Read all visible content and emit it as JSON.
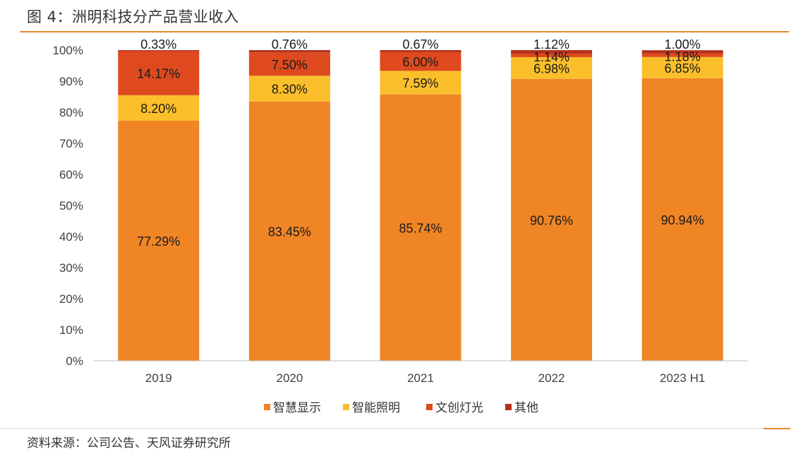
{
  "figure": {
    "title": "图 4：洲明科技分产品营业收入",
    "source": "资料来源：公司公告、天风证券研究所"
  },
  "chart_data": {
    "type": "bar",
    "stacked": true,
    "percent": true,
    "categories": [
      "2019",
      "2020",
      "2021",
      "2022",
      "2023 H1"
    ],
    "series": [
      {
        "name": "智慧显示",
        "color": "#F08526",
        "values": [
          77.29,
          83.45,
          85.74,
          90.76,
          90.94
        ],
        "labels": [
          "77.29%",
          "83.45%",
          "85.74%",
          "90.76%",
          "90.94%"
        ]
      },
      {
        "name": "智能照明",
        "color": "#FBBF2B",
        "values": [
          8.2,
          8.3,
          7.59,
          6.98,
          6.85
        ],
        "labels": [
          "8.20%",
          "8.30%",
          "7.59%",
          "6.98%",
          "6.85%"
        ]
      },
      {
        "name": "文创灯光",
        "color": "#DE4A1E",
        "values": [
          14.17,
          7.5,
          6.0,
          1.14,
          1.18
        ],
        "labels": [
          "14.17%",
          "7.50%",
          "6.00%",
          "1.14%",
          "1.18%"
        ]
      },
      {
        "name": "其他",
        "color": "#B5301C",
        "values": [
          0.33,
          0.76,
          0.67,
          1.12,
          1.0
        ],
        "labels": [
          "0.33%",
          "0.76%",
          "0.67%",
          "1.12%",
          "1.00%"
        ]
      }
    ],
    "y_ticks": [
      "0%",
      "10%",
      "20%",
      "30%",
      "40%",
      "50%",
      "60%",
      "70%",
      "80%",
      "90%",
      "100%"
    ],
    "ylim": [
      0,
      100
    ],
    "grid": false,
    "legend": "bottom-center"
  }
}
